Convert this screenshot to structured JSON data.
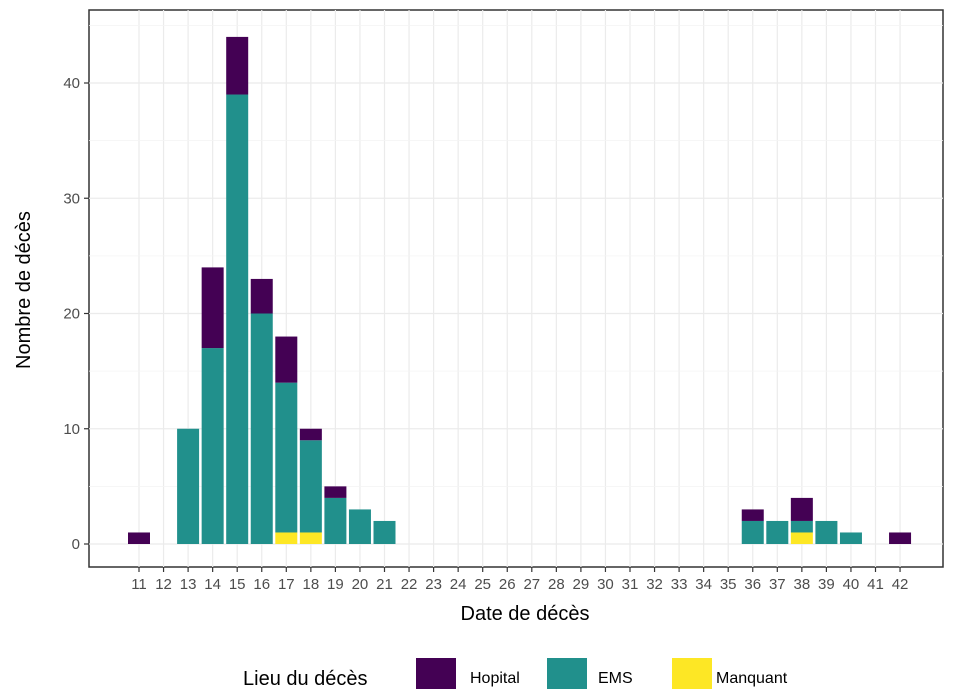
{
  "chart_data": {
    "type": "bar",
    "stacked": true,
    "xlabel": "Date de décès",
    "ylabel": "Nombre de décès",
    "categories": [
      "11",
      "12",
      "13",
      "14",
      "15",
      "16",
      "17",
      "18",
      "19",
      "20",
      "21",
      "22",
      "23",
      "24",
      "25",
      "26",
      "27",
      "28",
      "29",
      "30",
      "31",
      "32",
      "33",
      "34",
      "35",
      "36",
      "37",
      "38",
      "39",
      "40",
      "41",
      "42"
    ],
    "x_tick_labels": [
      "11",
      "12",
      "13",
      "14",
      "15",
      "16",
      "17",
      "18",
      "19",
      "20",
      "21",
      "22",
      "23",
      "24",
      "25",
      "26",
      "27",
      "28",
      "29",
      "30",
      "31",
      "32",
      "33",
      "34",
      "35",
      "36",
      "37",
      "38",
      "39",
      "40",
      "41",
      "42"
    ],
    "y_ticks": [
      0,
      10,
      20,
      30,
      40
    ],
    "ylim": [
      -2,
      47
    ],
    "grid": true,
    "series": [
      {
        "name": "Manquant",
        "color": "#FDE725",
        "values": [
          0,
          0,
          0,
          0,
          0,
          0,
          1,
          1,
          0,
          0,
          0,
          0,
          0,
          0,
          0,
          0,
          0,
          0,
          0,
          0,
          0,
          0,
          0,
          0,
          0,
          0,
          0,
          1,
          0,
          0,
          0,
          0
        ]
      },
      {
        "name": "EMS",
        "color": "#21908C",
        "values": [
          0,
          0,
          10,
          17,
          39,
          20,
          13,
          8,
          4,
          3,
          2,
          0,
          0,
          0,
          0,
          0,
          0,
          0,
          0,
          0,
          0,
          0,
          0,
          0,
          0,
          2,
          2,
          1,
          2,
          1,
          0,
          0
        ]
      },
      {
        "name": "Hopital",
        "color": "#440154",
        "values": [
          1,
          0,
          0,
          7,
          5,
          3,
          4,
          1,
          1,
          0,
          0,
          0,
          0,
          0,
          0,
          0,
          0,
          0,
          0,
          0,
          0,
          0,
          0,
          0,
          0,
          1,
          0,
          2,
          0,
          0,
          0,
          1
        ]
      }
    ],
    "legend": {
      "title": "Lieu du décès",
      "position": "bottom",
      "items": [
        {
          "label": "Hopital",
          "color": "#440154"
        },
        {
          "label": "EMS",
          "color": "#21908C"
        },
        {
          "label": "Manquant",
          "color": "#FDE725"
        }
      ]
    }
  }
}
